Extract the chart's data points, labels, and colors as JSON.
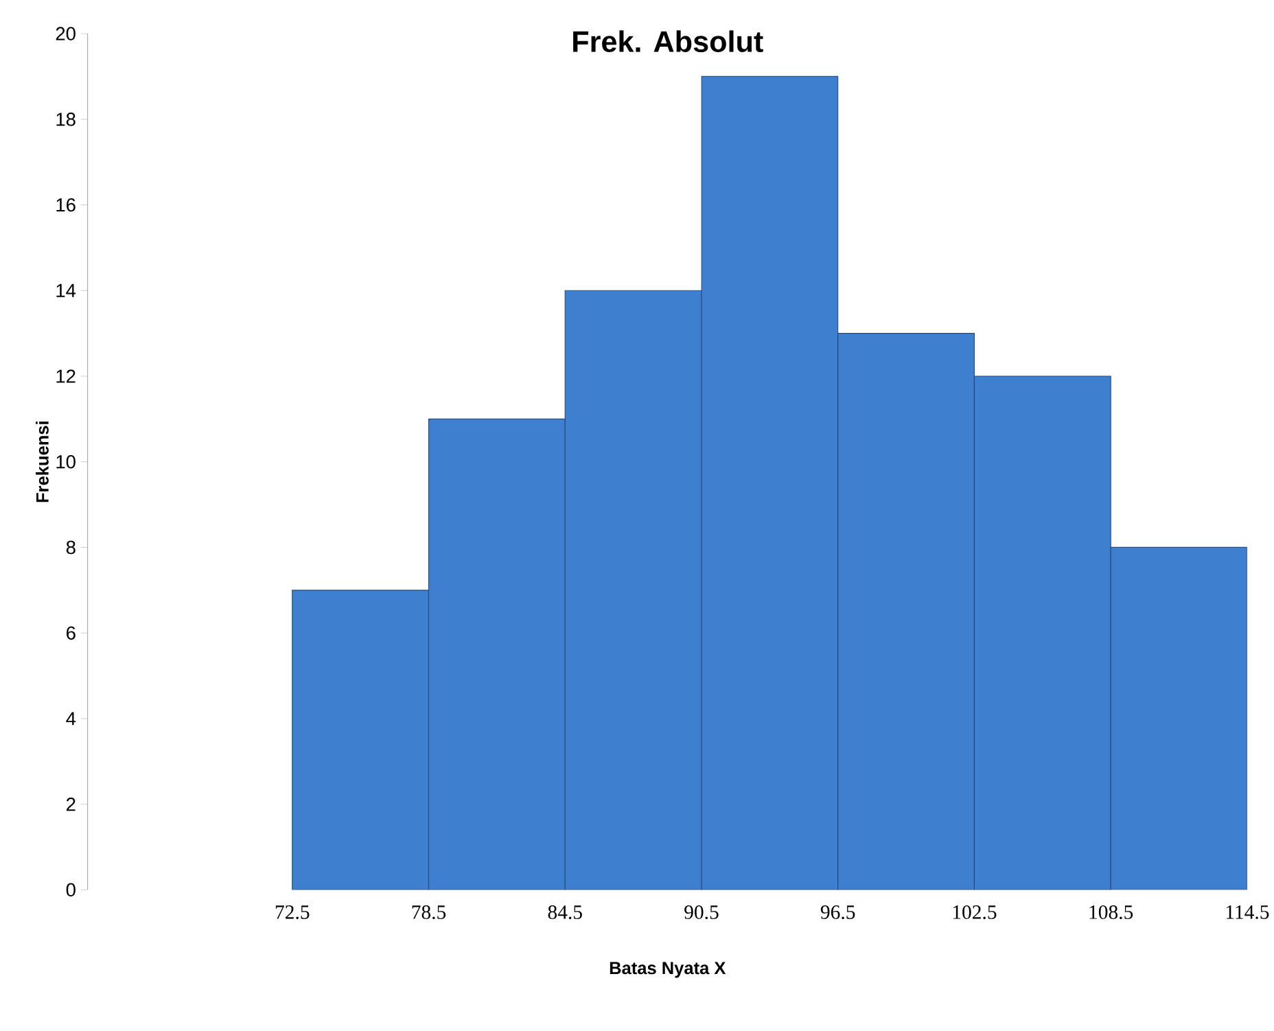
{
  "chart_data": {
    "type": "histogram",
    "title": "Frek. Absolut",
    "xlabel": "Batas  Nyata X",
    "ylabel": "Frekuensi",
    "bins": [
      72.5,
      78.5,
      84.5,
      90.5,
      96.5,
      102.5,
      108.5,
      114.5
    ],
    "values": [
      7,
      11,
      14,
      19,
      13,
      12,
      8
    ],
    "color": "#3f7fd0",
    "xlim": [
      63.5,
      114.5
    ],
    "xticks": [
      72.5,
      78.5,
      84.5,
      90.5,
      96.5,
      102.5,
      108.5,
      114.5
    ],
    "ylim": [
      0,
      20
    ],
    "yticks": [
      0,
      2,
      4,
      6,
      8,
      10,
      12,
      14,
      16,
      18,
      20
    ],
    "grid": false
  }
}
